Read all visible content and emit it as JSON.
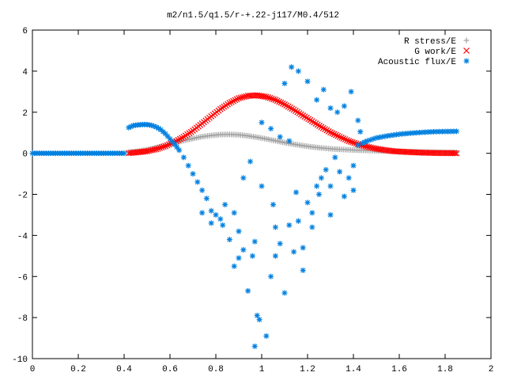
{
  "chart_data": {
    "type": "scatter",
    "title": "m2/n1.5/q1.5/r-+.22-j117/M0.4/512",
    "xlabel": "",
    "ylabel": "",
    "xlim": [
      0,
      2
    ],
    "ylim": [
      -10,
      6
    ],
    "x_ticks": [
      "0",
      "0.2",
      "0.4",
      "0.6",
      "0.8",
      "1",
      "1.2",
      "1.4",
      "1.6",
      "1.8",
      "2"
    ],
    "y_ticks": [
      "6",
      "4",
      "2",
      "0",
      "-2",
      "-4",
      "-6",
      "-8",
      "-10"
    ],
    "grid": false,
    "legend_position": "top-right",
    "series": [
      {
        "name": "R stress/E",
        "marker": "plus",
        "color": "#a0a0a0",
        "points": [
          [
            0.42,
            0.05
          ],
          [
            0.46,
            0.1
          ],
          [
            0.5,
            0.17
          ],
          [
            0.54,
            0.27
          ],
          [
            0.58,
            0.38
          ],
          [
            0.62,
            0.5
          ],
          [
            0.66,
            0.62
          ],
          [
            0.7,
            0.72
          ],
          [
            0.74,
            0.81
          ],
          [
            0.78,
            0.87
          ],
          [
            0.82,
            0.91
          ],
          [
            0.86,
            0.92
          ],
          [
            0.9,
            0.9
          ],
          [
            0.94,
            0.85
          ],
          [
            0.98,
            0.78
          ],
          [
            1.02,
            0.7
          ],
          [
            1.06,
            0.61
          ],
          [
            1.1,
            0.52
          ],
          [
            1.14,
            0.44
          ],
          [
            1.18,
            0.37
          ],
          [
            1.22,
            0.31
          ],
          [
            1.26,
            0.26
          ],
          [
            1.3,
            0.22
          ],
          [
            1.34,
            0.19
          ],
          [
            1.38,
            0.17
          ],
          [
            1.42,
            0.15
          ],
          [
            1.46,
            0.14
          ],
          [
            1.5,
            0.12
          ],
          [
            1.54,
            0.11
          ],
          [
            1.58,
            0.09
          ],
          [
            1.62,
            0.08
          ],
          [
            1.66,
            0.07
          ],
          [
            1.7,
            0.06
          ],
          [
            1.74,
            0.05
          ],
          [
            1.78,
            0.05
          ],
          [
            1.82,
            0.04
          ],
          [
            1.85,
            0.04
          ]
        ]
      },
      {
        "name": "G work/E",
        "marker": "cross",
        "color": "#ff0000",
        "points": [
          [
            0.42,
            0.01
          ],
          [
            0.46,
            0.05
          ],
          [
            0.5,
            0.1
          ],
          [
            0.54,
            0.2
          ],
          [
            0.58,
            0.35
          ],
          [
            0.62,
            0.55
          ],
          [
            0.66,
            0.8
          ],
          [
            0.7,
            1.1
          ],
          [
            0.74,
            1.45
          ],
          [
            0.78,
            1.8
          ],
          [
            0.82,
            2.15
          ],
          [
            0.86,
            2.45
          ],
          [
            0.9,
            2.68
          ],
          [
            0.94,
            2.8
          ],
          [
            0.98,
            2.82
          ],
          [
            1.02,
            2.75
          ],
          [
            1.06,
            2.6
          ],
          [
            1.1,
            2.38
          ],
          [
            1.14,
            2.12
          ],
          [
            1.18,
            1.84
          ],
          [
            1.22,
            1.56
          ],
          [
            1.26,
            1.28
          ],
          [
            1.3,
            1.02
          ],
          [
            1.34,
            0.8
          ],
          [
            1.38,
            0.6
          ],
          [
            1.42,
            0.44
          ],
          [
            1.46,
            0.32
          ],
          [
            1.5,
            0.22
          ],
          [
            1.54,
            0.15
          ],
          [
            1.58,
            0.1
          ],
          [
            1.62,
            0.07
          ],
          [
            1.66,
            0.05
          ],
          [
            1.7,
            0.03
          ],
          [
            1.74,
            0.02
          ],
          [
            1.78,
            0.01
          ],
          [
            1.82,
            0.01
          ],
          [
            1.85,
            0.0
          ]
        ]
      },
      {
        "name": "Acoustic flux/E",
        "marker": "star",
        "color": "#0080e0",
        "points": [
          [
            0.0,
            0.0
          ],
          [
            0.05,
            0.0
          ],
          [
            0.1,
            0.0
          ],
          [
            0.15,
            0.0
          ],
          [
            0.2,
            0.0
          ],
          [
            0.25,
            0.0
          ],
          [
            0.3,
            0.0
          ],
          [
            0.35,
            0.0
          ],
          [
            0.4,
            0.0
          ],
          [
            0.42,
            1.25
          ],
          [
            0.44,
            1.35
          ],
          [
            0.46,
            1.38
          ],
          [
            0.48,
            1.4
          ],
          [
            0.5,
            1.4
          ],
          [
            0.52,
            1.36
          ],
          [
            0.54,
            1.28
          ],
          [
            0.56,
            1.15
          ],
          [
            0.58,
            0.95
          ],
          [
            0.6,
            0.7
          ],
          [
            0.62,
            0.45
          ],
          [
            0.64,
            0.15
          ],
          [
            0.66,
            -0.2
          ],
          [
            0.68,
            -0.6
          ],
          [
            0.7,
            -1.0
          ],
          [
            0.72,
            -1.4
          ],
          [
            0.74,
            -1.8
          ],
          [
            0.76,
            -2.2
          ],
          [
            0.78,
            -2.8
          ],
          [
            0.8,
            -3.0
          ],
          [
            0.82,
            -3.2
          ],
          [
            0.84,
            -2.5
          ],
          [
            0.86,
            -4.2
          ],
          [
            0.88,
            -5.5
          ],
          [
            0.9,
            -3.8
          ],
          [
            0.92,
            -4.7
          ],
          [
            0.94,
            -6.7
          ],
          [
            0.96,
            -5.0
          ],
          [
            0.98,
            -7.9
          ],
          [
            0.99,
            -8.1
          ],
          [
            0.97,
            -9.4
          ],
          [
            1.02,
            -8.9
          ],
          [
            1.04,
            -6.0
          ],
          [
            1.06,
            -5.0
          ],
          [
            1.08,
            -4.4
          ],
          [
            1.1,
            -6.8
          ],
          [
            1.12,
            -3.5
          ],
          [
            1.14,
            -4.8
          ],
          [
            1.16,
            -3.3
          ],
          [
            1.18,
            -5.7
          ],
          [
            1.2,
            -2.4
          ],
          [
            1.22,
            -2.9
          ],
          [
            1.24,
            -1.6
          ],
          [
            1.26,
            -1.2
          ],
          [
            1.28,
            -0.8
          ],
          [
            1.3,
            -1.6
          ],
          [
            1.32,
            -0.2
          ],
          [
            1.34,
            -0.9
          ],
          [
            1.36,
            -2.1
          ],
          [
            1.38,
            -1.2
          ],
          [
            1.4,
            -0.6
          ],
          [
            1.42,
            0.4
          ],
          [
            1.44,
            0.5
          ],
          [
            1.46,
            0.6
          ],
          [
            1.5,
            0.75
          ],
          [
            1.55,
            0.85
          ],
          [
            1.6,
            0.93
          ],
          [
            1.65,
            0.98
          ],
          [
            1.7,
            1.02
          ],
          [
            1.75,
            1.05
          ],
          [
            1.8,
            1.06
          ],
          [
            1.85,
            1.07
          ],
          [
            1.1,
            3.4
          ],
          [
            1.13,
            4.2
          ],
          [
            1.16,
            4.0
          ],
          [
            1.2,
            3.5
          ],
          [
            1.24,
            2.6
          ],
          [
            1.27,
            3.1
          ],
          [
            1.3,
            2.2
          ],
          [
            1.33,
            2.0
          ],
          [
            1.36,
            2.3
          ],
          [
            1.39,
            3.0
          ],
          [
            1.42,
            1.6
          ],
          [
            1.0,
            1.5
          ],
          [
            1.04,
            1.2
          ],
          [
            1.08,
            0.8
          ],
          [
            1.12,
            0.6
          ],
          [
            0.92,
            -1.2
          ],
          [
            0.95,
            -0.4
          ],
          [
            1.0,
            -1.6
          ],
          [
            1.05,
            -2.5
          ],
          [
            1.15,
            -1.9
          ],
          [
            1.25,
            -2.0
          ],
          [
            1.3,
            -3.0
          ],
          [
            0.88,
            -2.9
          ],
          [
            0.83,
            -3.5
          ],
          [
            0.9,
            -5.1
          ],
          [
            1.06,
            -3.6
          ],
          [
            0.97,
            -4.3
          ],
          [
            1.18,
            -4.6
          ],
          [
            0.74,
            -2.9
          ],
          [
            0.78,
            -3.4
          ],
          [
            1.22,
            -3.6
          ],
          [
            1.4,
            -1.8
          ]
        ]
      }
    ]
  }
}
